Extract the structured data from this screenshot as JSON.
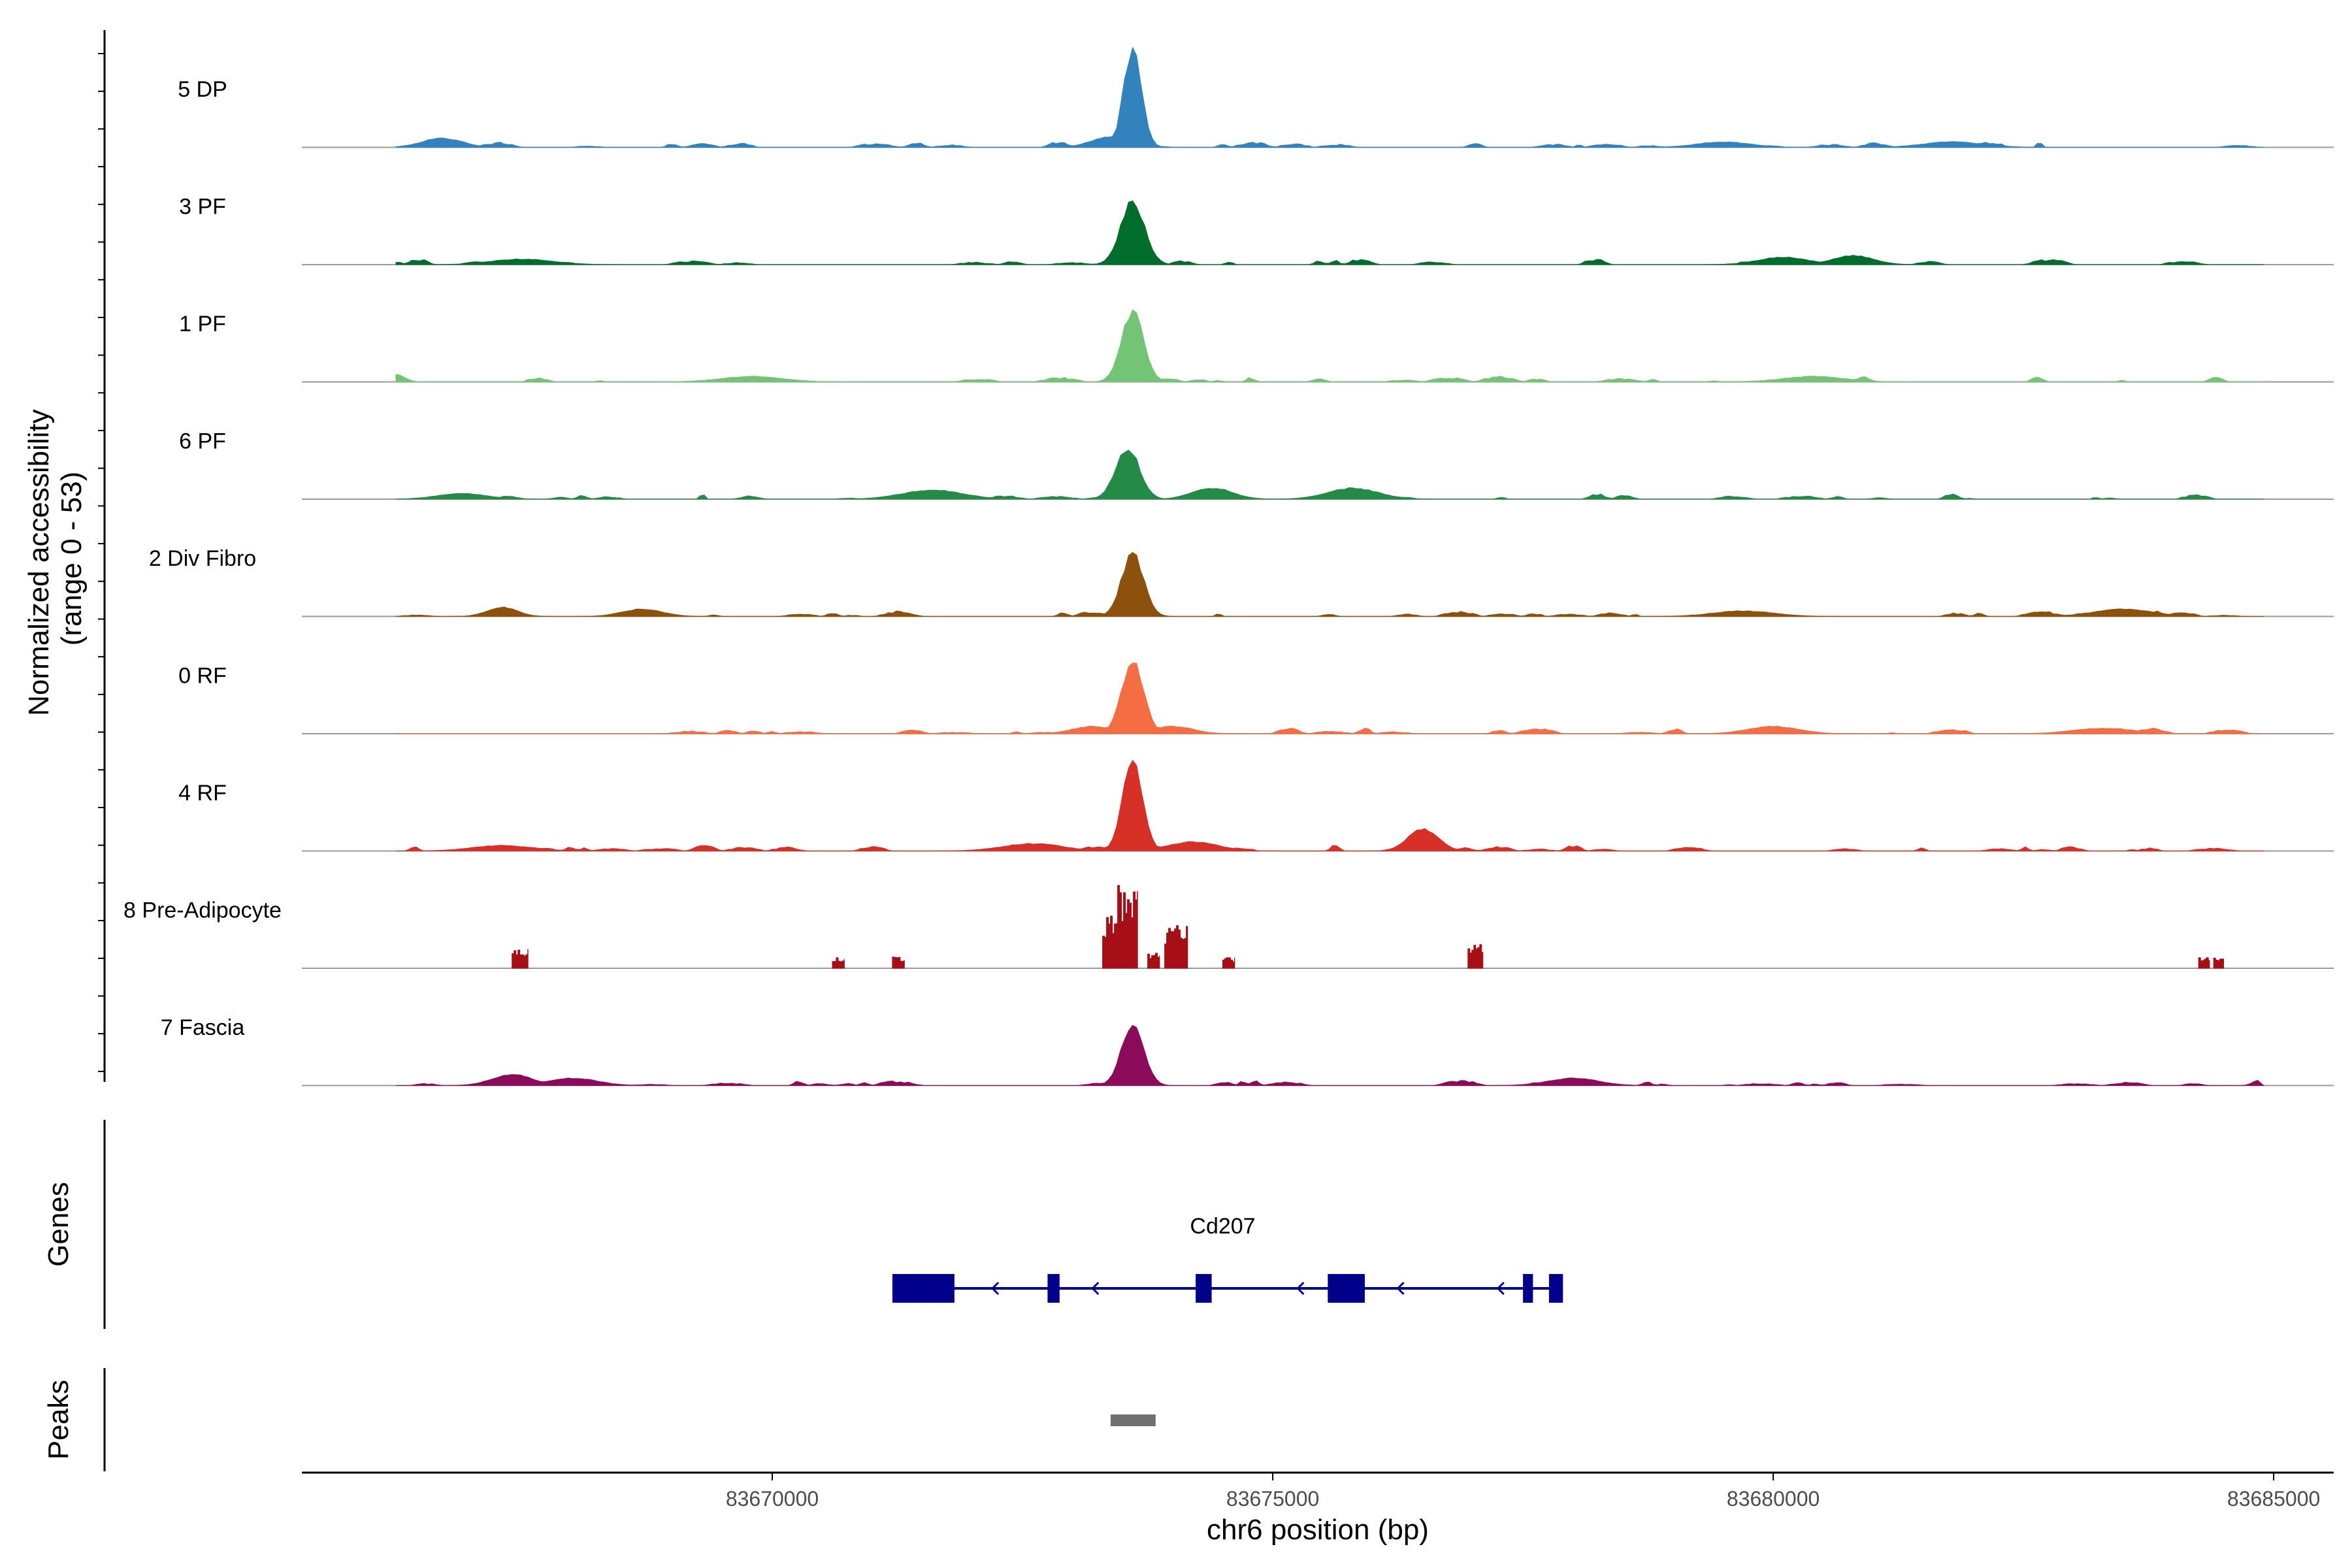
{
  "chart_data": {
    "type": "area",
    "title": "",
    "chromosome": "chr6",
    "xlabel": "chr6 position (bp)",
    "ylabel_line1": "Normalized accessibility",
    "ylabel_line2": "(range 0 - 53)",
    "yrange": [
      0,
      53
    ],
    "xlim": [
      83665300,
      83685600
    ],
    "data_start": 83666240,
    "data_end": 83684900,
    "x_ticks": [
      {
        "value": 83670000,
        "label": "83670000"
      },
      {
        "value": 83675000,
        "label": "83675000"
      },
      {
        "value": 83680000,
        "label": "83680000"
      },
      {
        "value": 83685000,
        "label": "83685000"
      }
    ],
    "series": [
      {
        "name": "5 DP",
        "color": "#3182bd",
        "sparse": false,
        "seed": 11,
        "peaks": [
          [
            83673600,
            53,
            90
          ],
          [
            83673400,
            6,
            200
          ],
          [
            83666700,
            5,
            200
          ],
          [
            83679500,
            3,
            260
          ],
          [
            83681800,
            3,
            300
          ]
        ]
      },
      {
        "name": "3 PF",
        "color": "#006d2c",
        "sparse": false,
        "seed": 23,
        "peaks": [
          [
            83673600,
            34,
            120
          ],
          [
            83680800,
            5,
            200
          ],
          [
            83680100,
            4,
            250
          ],
          [
            83667500,
            3,
            300
          ]
        ]
      },
      {
        "name": "1 PF",
        "color": "#74c476",
        "sparse": false,
        "seed": 37,
        "peaks": [
          [
            83673600,
            38,
            110
          ],
          [
            83666250,
            4,
            80
          ],
          [
            83669800,
            3,
            300
          ],
          [
            83680400,
            3,
            300
          ]
        ]
      },
      {
        "name": "6 PF",
        "color": "#238b45",
        "sparse": false,
        "seed": 41,
        "peaks": [
          [
            83673550,
            28,
            120
          ],
          [
            83674400,
            6,
            200
          ],
          [
            83675800,
            6,
            250
          ],
          [
            83671600,
            5,
            300
          ],
          [
            83666900,
            3,
            250
          ]
        ]
      },
      {
        "name": "2 Div Fibro",
        "color": "#8c510a",
        "sparse": false,
        "seed": 53,
        "peaks": [
          [
            83673600,
            34,
            110
          ],
          [
            83667300,
            5,
            150
          ],
          [
            83668700,
            4,
            200
          ],
          [
            83683500,
            4,
            300
          ],
          [
            83679700,
            3,
            300
          ]
        ]
      },
      {
        "name": "0 RF",
        "color": "#f46d43",
        "sparse": false,
        "seed": 61,
        "peaks": [
          [
            83673600,
            40,
            110
          ],
          [
            83673200,
            4,
            200
          ],
          [
            83674000,
            4,
            200
          ],
          [
            83680000,
            4,
            250
          ],
          [
            83683300,
            3,
            300
          ]
        ]
      },
      {
        "name": "4 RF",
        "color": "#d73027",
        "sparse": false,
        "seed": 71,
        "peaks": [
          [
            83673600,
            48,
            100
          ],
          [
            83676500,
            12,
            150
          ],
          [
            83674200,
            5,
            250
          ],
          [
            83672600,
            4,
            300
          ],
          [
            83667300,
            3,
            300
          ]
        ]
      },
      {
        "name": "8 Pre-Adipocyte",
        "color": "#a50f15",
        "sparse": true,
        "seed": 83,
        "blocks": [
          [
            83667400,
            83667560,
            10
          ],
          [
            83670600,
            83670720,
            6
          ],
          [
            83671200,
            83671320,
            6
          ],
          [
            83673300,
            83673450,
            28
          ],
          [
            83673450,
            83673650,
            43
          ],
          [
            83673750,
            83673870,
            8
          ],
          [
            83673920,
            83674150,
            22
          ],
          [
            83674500,
            83674620,
            6
          ],
          [
            83676950,
            83677100,
            14
          ],
          [
            83684250,
            83684360,
            6
          ],
          [
            83684400,
            83684500,
            6
          ]
        ]
      },
      {
        "name": "7 Fascia",
        "color": "#8c0a5a",
        "sparse": false,
        "seed": 97,
        "peaks": [
          [
            83673600,
            34,
            110
          ],
          [
            83667400,
            6,
            200
          ],
          [
            83668000,
            4,
            250
          ],
          [
            83678000,
            4,
            250
          ],
          [
            83684850,
            3,
            60
          ]
        ]
      }
    ],
    "genes_label": "Genes",
    "peaks_label": "Peaks",
    "genes": [
      {
        "name": "Cd207",
        "strand": "-",
        "start": 83671200,
        "end": 83677800,
        "label_pos": 83674500,
        "exons": [
          [
            83671200,
            83671820
          ],
          [
            83672750,
            83672870
          ],
          [
            83674230,
            83674390
          ],
          [
            83675550,
            83675920
          ],
          [
            83677500,
            83677600
          ],
          [
            83677760,
            83677900
          ]
        ],
        "arrows": [
          83672200,
          83673200,
          83675250,
          83676250,
          83677250
        ]
      }
    ],
    "peak_regions": [
      [
        83673380,
        83673830
      ]
    ]
  },
  "colors": {
    "gene": "#00008b",
    "peak": "#6f6f6f",
    "baseline": "#9a9a9a",
    "axis": "#000000"
  }
}
